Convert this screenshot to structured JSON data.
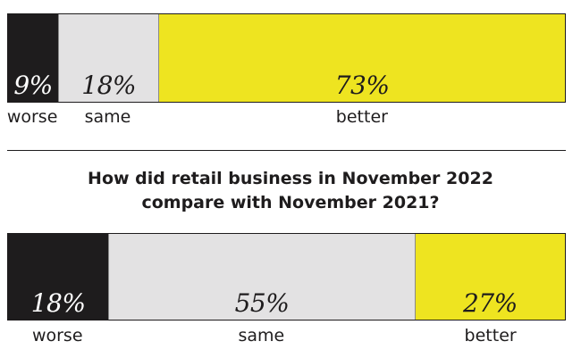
{
  "chart_data": [
    {
      "type": "bar",
      "title": "",
      "stacked": true,
      "orientation": "horizontal",
      "categories": [
        "worse",
        "same",
        "better"
      ],
      "values": [
        9,
        18,
        73
      ],
      "labels": [
        "9%",
        "18%",
        "73%"
      ],
      "colors": [
        "#1e1c1d",
        "#e3e2e3",
        "#eee420"
      ],
      "text_colors": [
        "#ffffff",
        "#1e1c1d",
        "#1e1c1d"
      ]
    },
    {
      "type": "bar",
      "title": [
        "How did retail business in November 2022",
        "compare with November 2021?"
      ],
      "stacked": true,
      "orientation": "horizontal",
      "categories": [
        "worse",
        "same",
        "better"
      ],
      "values": [
        18,
        55,
        27
      ],
      "labels": [
        "18%",
        "55%",
        "27%"
      ],
      "colors": [
        "#1e1c1d",
        "#e3e2e3",
        "#eee420"
      ],
      "text_colors": [
        "#ffffff",
        "#1e1c1d",
        "#1e1c1d"
      ]
    }
  ]
}
